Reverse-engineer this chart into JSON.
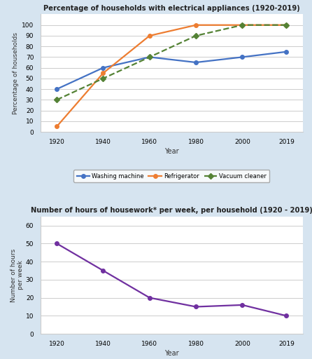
{
  "years": [
    1920,
    1940,
    1960,
    1980,
    2000,
    2019
  ],
  "washing_machine": [
    40,
    60,
    70,
    65,
    70,
    75
  ],
  "refrigerator": [
    5,
    55,
    90,
    100,
    100,
    100
  ],
  "vacuum_cleaner": [
    30,
    50,
    70,
    90,
    100,
    100
  ],
  "hours_per_week": [
    50,
    35,
    20,
    15,
    16,
    10
  ],
  "title1": "Percentage of households with electrical appliances (1920-2019)",
  "title2": "Number of hours of housework* per week, per household (1920 - 2019)",
  "ylabel1": "Percentage of households",
  "ylabel2": "Number of hours\nper week",
  "xlabel": "Year",
  "ylim1": [
    0,
    110
  ],
  "ylim2": [
    0,
    65
  ],
  "yticks1": [
    0,
    10,
    20,
    30,
    40,
    50,
    60,
    70,
    80,
    90,
    100
  ],
  "yticks2": [
    0,
    10,
    20,
    30,
    40,
    50,
    60
  ],
  "color_washing": "#4472C4",
  "color_refrigerator": "#ED7D31",
  "color_vacuum": "#548235",
  "color_hours": "#7030A0",
  "bg_color": "#D6E4F0",
  "plot_bg": "#FFFFFF"
}
